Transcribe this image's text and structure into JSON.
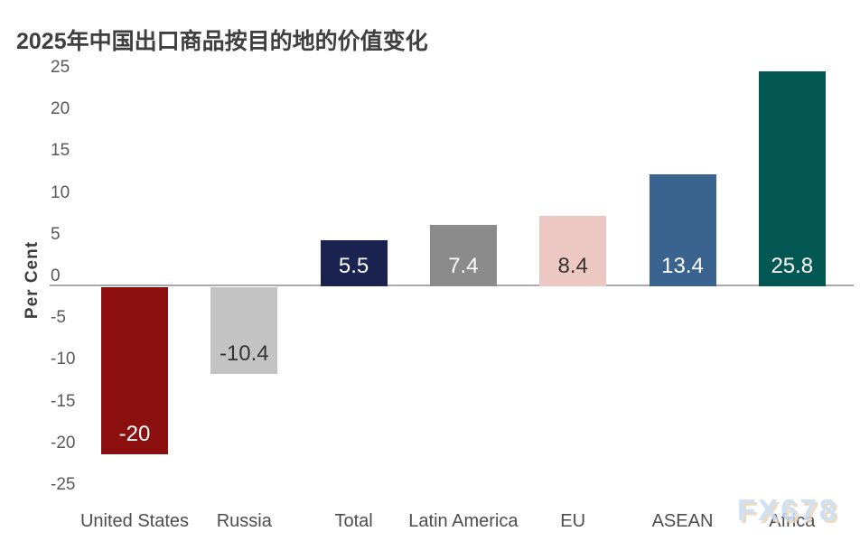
{
  "title": "2025年中国出口商品按目的地的价值变化",
  "watermark": "FX678",
  "chart_data": {
    "type": "bar",
    "title": "2025年中国出口商品按目的地的价值变化",
    "xlabel": "",
    "ylabel": "Per Cent",
    "categories": [
      "United States",
      "Russia",
      "Total",
      "Latin America",
      "EU",
      "ASEAN",
      "Africa"
    ],
    "values": [
      -20,
      -10.4,
      5.5,
      7.4,
      8.4,
      13.4,
      25.8
    ],
    "data_labels": [
      "-20",
      "-10.4",
      "5.5",
      "7.4",
      "8.4",
      "13.4",
      "25.8"
    ],
    "bar_colors": [
      "#8c0f0f",
      "#c3c3c3",
      "#1b2351",
      "#8b8b8b",
      "#edc7c1",
      "#3a6390",
      "#045854"
    ],
    "data_label_colors": [
      "#ffffff",
      "#333333",
      "#ffffff",
      "#ffffff",
      "#333333",
      "#ffffff",
      "#ffffff"
    ],
    "ylim": [
      -25,
      25
    ],
    "yticks": [
      25,
      20,
      15,
      10,
      5,
      0,
      -5,
      -10,
      -15,
      -20,
      -25
    ],
    "grid": false,
    "legend_position": "none"
  },
  "colors": {
    "axis_line": "#a9a9a9",
    "tick_text": "#595959",
    "category_text": "#4d4d4d",
    "title_text": "#3f3f3f",
    "watermark_blue": "#c8dbf2",
    "watermark_tan": "#e7d5be",
    "background": "#ffffff"
  }
}
